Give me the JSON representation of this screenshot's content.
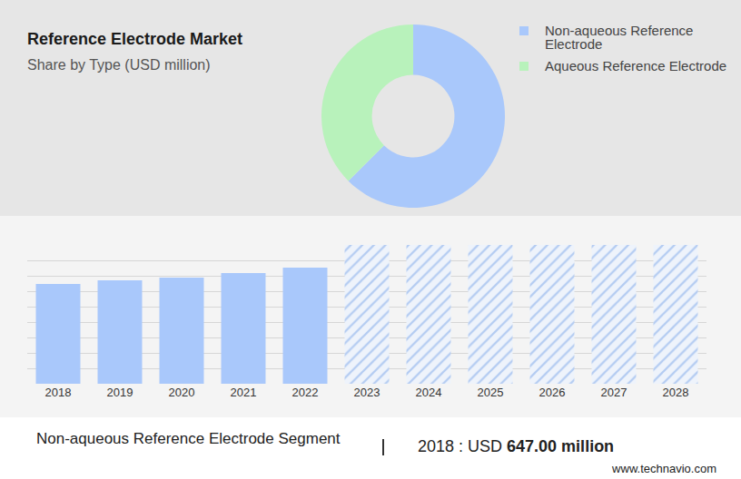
{
  "chart_data": [
    {
      "type": "pie",
      "title": "Reference Electrode Market",
      "subtitle": "Share by Type (USD million)",
      "categories": [
        "Non-aqueous Reference Electrode",
        "Aqueous Reference Electrode"
      ],
      "values": [
        62.5,
        37.5
      ],
      "colors": [
        "#a9c8fb",
        "#b8f2bb"
      ],
      "legend": "right",
      "data_labels": false
    },
    {
      "type": "bar",
      "categories": [
        "2018",
        "2019",
        "2020",
        "2021",
        "2022",
        "2023",
        "2024",
        "2025",
        "2026",
        "2027",
        "2028"
      ],
      "series": [
        {
          "color": "#a9c8fb",
          "values": [
            647,
            671,
            688,
            718,
            753,
            null,
            null,
            null,
            null,
            null,
            null
          ]
        },
        {
          "color": "#b4ccf2",
          "marker": "hatched",
          "values": [
            null,
            null,
            null,
            null,
            null,
            900,
            900,
            900,
            900,
            900,
            900
          ]
        }
      ],
      "ylim": [
        0,
        900
      ],
      "yticks": [
        0,
        100,
        200,
        300,
        400,
        500,
        600,
        700,
        800,
        900
      ],
      "grid": true,
      "tick_labels": "x",
      "annotations": [
        "Non-aqueous Reference Electrode Segment",
        "2018 : USD",
        "647.00 million"
      ],
      "source": "www.technavio.com"
    }
  ]
}
